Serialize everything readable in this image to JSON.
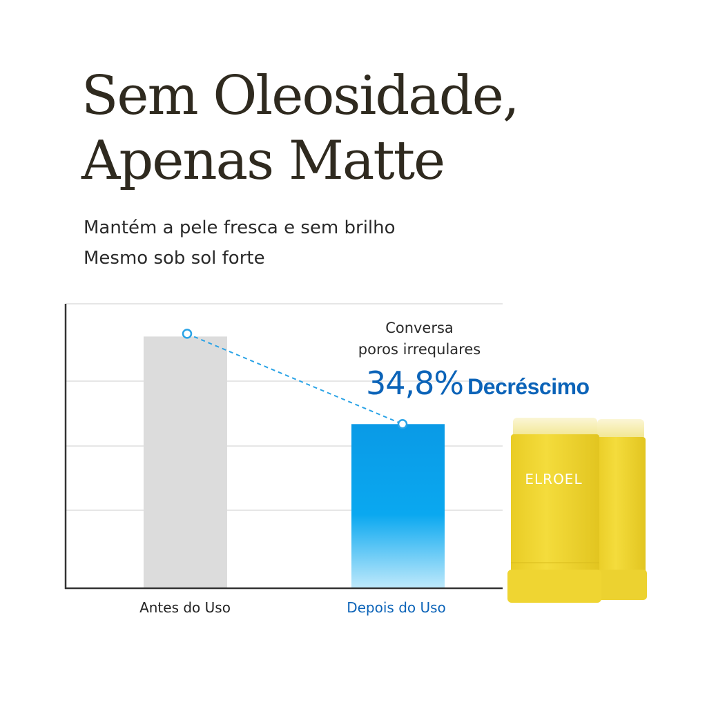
{
  "header": {
    "title_lines": [
      "Sem Oleosidade,",
      "Apenas Matte"
    ],
    "subtitle_lines": [
      "Mantém a pele fresca e sem brilho",
      "Mesmo sob sol forte"
    ]
  },
  "annotation": {
    "lines": [
      "Conversa",
      "poros irrequlares"
    ],
    "percent": "34,8%",
    "word": "Decréscimo"
  },
  "product": {
    "brand": "ELROEL",
    "color": "#f2d93a"
  },
  "colors": {
    "before_bar": "#dcdcdc",
    "after_bar": "#0aa0ec",
    "accent": "#0b63b8",
    "connector": "#2aa3e6"
  },
  "chart_data": {
    "type": "bar",
    "categories": [
      "Antes do Uso",
      "Depois do Uso"
    ],
    "values": [
      100,
      65.2
    ],
    "ylim": [
      0,
      113
    ],
    "grid": true,
    "xlabel": "",
    "ylabel": "",
    "annotation": "34,8% Decréscimo"
  }
}
